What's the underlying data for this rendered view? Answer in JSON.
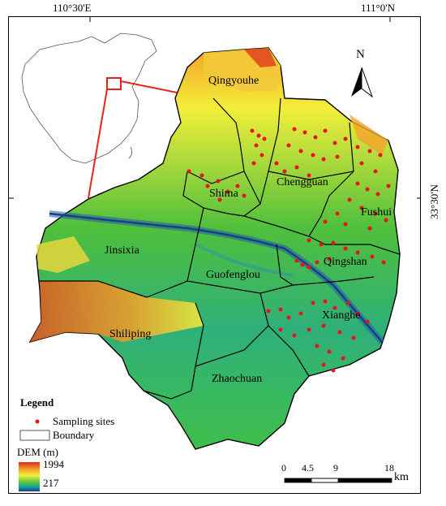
{
  "coordinates": {
    "top_left": "110°30'E",
    "top_right": "111°0'N",
    "right_mid": "33°30'N"
  },
  "regions": [
    {
      "name": "Qingyouhe"
    },
    {
      "name": "Chengguan"
    },
    {
      "name": "Shima"
    },
    {
      "name": "Fushui"
    },
    {
      "name": "Jinsixia"
    },
    {
      "name": "Guofenglou"
    },
    {
      "name": "Qingshan"
    },
    {
      "name": "Xianghe"
    },
    {
      "name": "Shiliping"
    },
    {
      "name": "Zhaochuan"
    }
  ],
  "north_label": "N",
  "legend": {
    "title": "Legend",
    "sampling": "Sampling sites",
    "boundary": "Boundary",
    "dem_title": "DEM (m)",
    "dem_max": "1994",
    "dem_min": "217"
  },
  "scale": {
    "ticks": [
      "0",
      "4.5",
      "9",
      "18"
    ],
    "unit": "km"
  },
  "colors": {
    "sample": "#e8141b",
    "inset_box": "#e8231b",
    "boundary": "#000000"
  }
}
